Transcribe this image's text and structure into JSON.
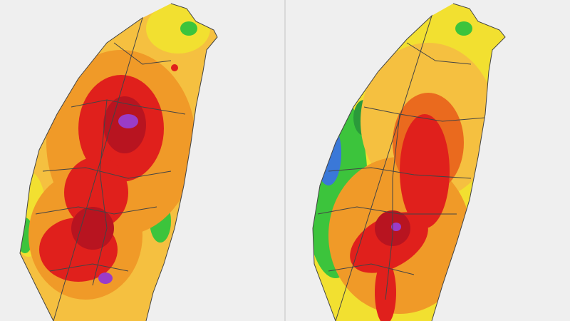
{
  "maps": [
    {
      "id": "left-map"
    },
    {
      "id": "right-map"
    }
  ],
  "colors": {
    "background": "#efefef",
    "green": "#3cc43c",
    "yellow": "#f2e030",
    "light_orange": "#f5c040",
    "orange": "#f09a28",
    "dark_orange": "#ea6a1e",
    "red": "#e0201c",
    "dark_red": "#b81420",
    "purple": "#9a3cc8",
    "blue": "#3a78d8",
    "dark_green": "#2a9a3a",
    "border": "#444444"
  }
}
